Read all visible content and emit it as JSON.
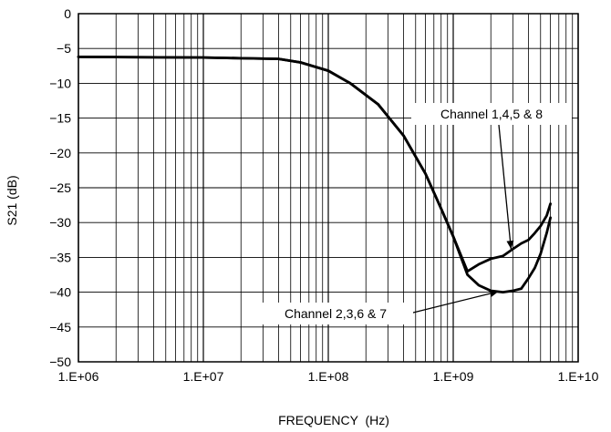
{
  "chart_data": {
    "type": "line",
    "title": "",
    "xlabel": "FREQUENCY  (Hz)",
    "ylabel": "S21 (dB)",
    "x_scale": "log",
    "xlim": [
      1000000,
      10000000000
    ],
    "ylim": [
      -50,
      0
    ],
    "grid": true,
    "x_tick_values": [
      1000000,
      10000000,
      100000000,
      1000000000,
      10000000000
    ],
    "x_tick_labels": [
      "1.E+06",
      "1.E+07",
      "1.E+08",
      "1.E+09",
      "1.E+10"
    ],
    "y_tick_values": [
      0,
      -5,
      -10,
      -15,
      -20,
      -25,
      -30,
      -35,
      -40,
      -45,
      -50
    ],
    "y_tick_labels": [
      "0",
      "−5",
      "−10",
      "−15",
      "−20",
      "−25",
      "−30",
      "−35",
      "−40",
      "−45",
      "−50"
    ],
    "series": [
      {
        "name": "Channel 1,4,5 & 8",
        "x": [
          1000000,
          10000000,
          20000000,
          40000000,
          60000000,
          100000000,
          150000000,
          250000000,
          400000000,
          600000000,
          800000000,
          1000000000,
          1300000000,
          1600000000,
          2000000000,
          2500000000,
          3000000000,
          3500000000,
          4000000000,
          4500000000,
          5000000000,
          5600000000,
          6000000000
        ],
        "y": [
          -6.2,
          -6.3,
          -6.4,
          -6.5,
          -7.0,
          -8.2,
          -10.0,
          -13.0,
          -17.5,
          -23.0,
          -28.0,
          -32.0,
          -37.0,
          -36.0,
          -35.2,
          -34.8,
          -33.8,
          -33.0,
          -32.5,
          -31.5,
          -30.5,
          -29.0,
          -27.3
        ]
      },
      {
        "name": "Channel 2,3,6 & 7",
        "x": [
          1000000,
          10000000,
          20000000,
          40000000,
          60000000,
          100000000,
          150000000,
          250000000,
          400000000,
          600000000,
          800000000,
          1000000000,
          1300000000,
          1600000000,
          2000000000,
          2500000000,
          3000000000,
          3500000000,
          4000000000,
          4500000000,
          5000000000,
          5600000000,
          6000000000
        ],
        "y": [
          -6.2,
          -6.3,
          -6.4,
          -6.5,
          -7.0,
          -8.2,
          -10.0,
          -13.0,
          -17.5,
          -23.0,
          -28.0,
          -32.0,
          -37.5,
          -39.0,
          -39.8,
          -40.0,
          -39.8,
          -39.5,
          -38.0,
          -36.5,
          -34.5,
          -31.5,
          -29.3
        ]
      }
    ],
    "annotations": [
      {
        "text": "Channel 1,4,5 & 8",
        "target_series": 0,
        "target_x": 2900000000,
        "target_y": -33.8
      },
      {
        "text": "Channel 2,3,6 & 7",
        "target_series": 1,
        "target_x": 2300000000,
        "target_y": -39.9
      }
    ]
  }
}
